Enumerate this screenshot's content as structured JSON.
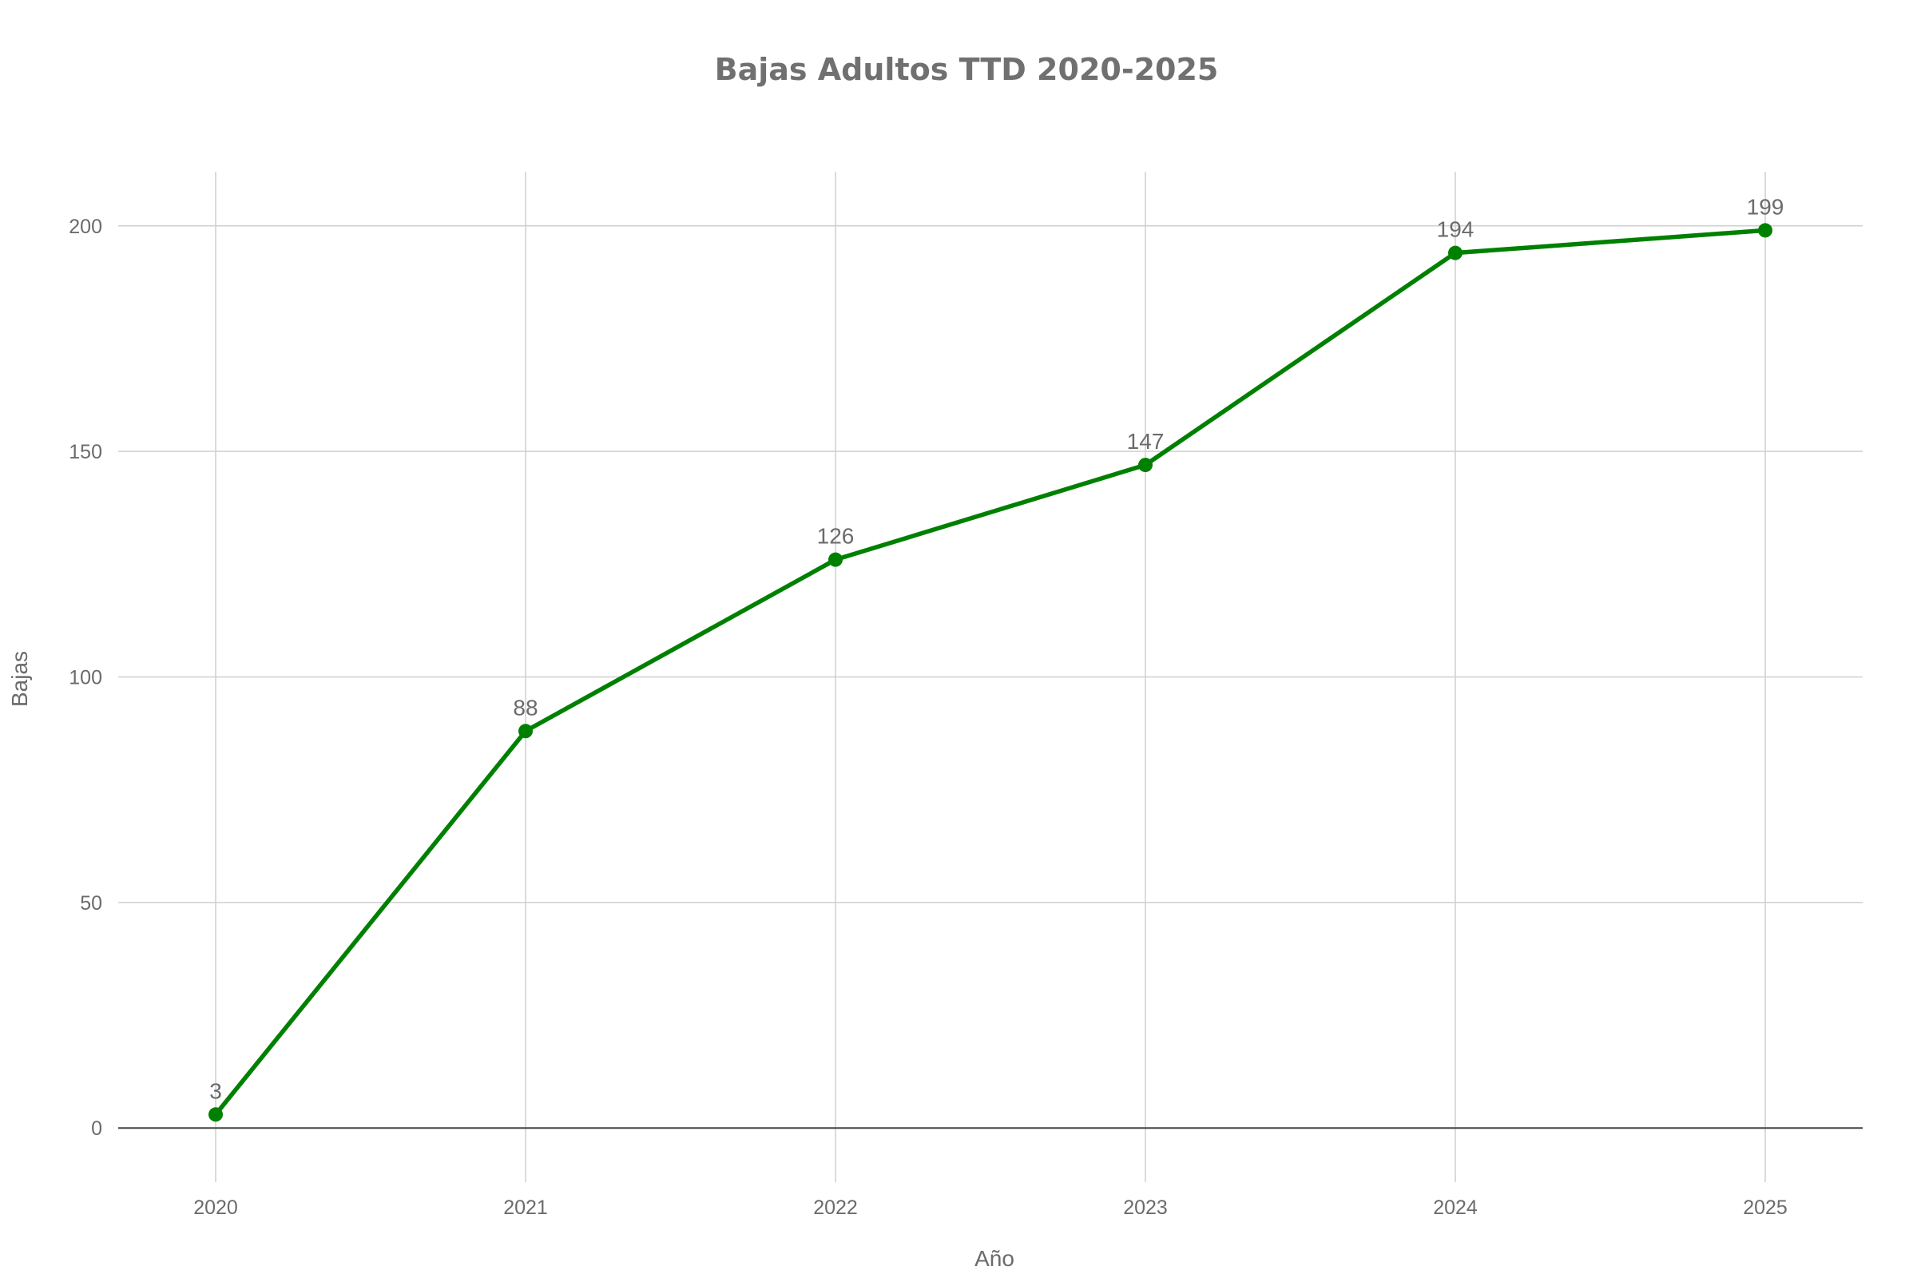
{
  "chart_data": {
    "type": "line",
    "title": "Bajas Adultos TTD 2020-2025",
    "xlabel": "Año",
    "ylabel": "Bajas",
    "x": [
      "2020",
      "2021",
      "2022",
      "2023",
      "2024",
      "2025"
    ],
    "series": [
      {
        "values": [
          3,
          88,
          126,
          147,
          194,
          199
        ],
        "color": "#008000"
      }
    ],
    "data_labels": [
      "3",
      "88",
      "126",
      "147",
      "194",
      "199"
    ],
    "yticks": [
      "0",
      "50",
      "100",
      "150",
      "200"
    ],
    "ylim": [
      -12,
      212
    ],
    "grid": true,
    "legend": "none"
  }
}
